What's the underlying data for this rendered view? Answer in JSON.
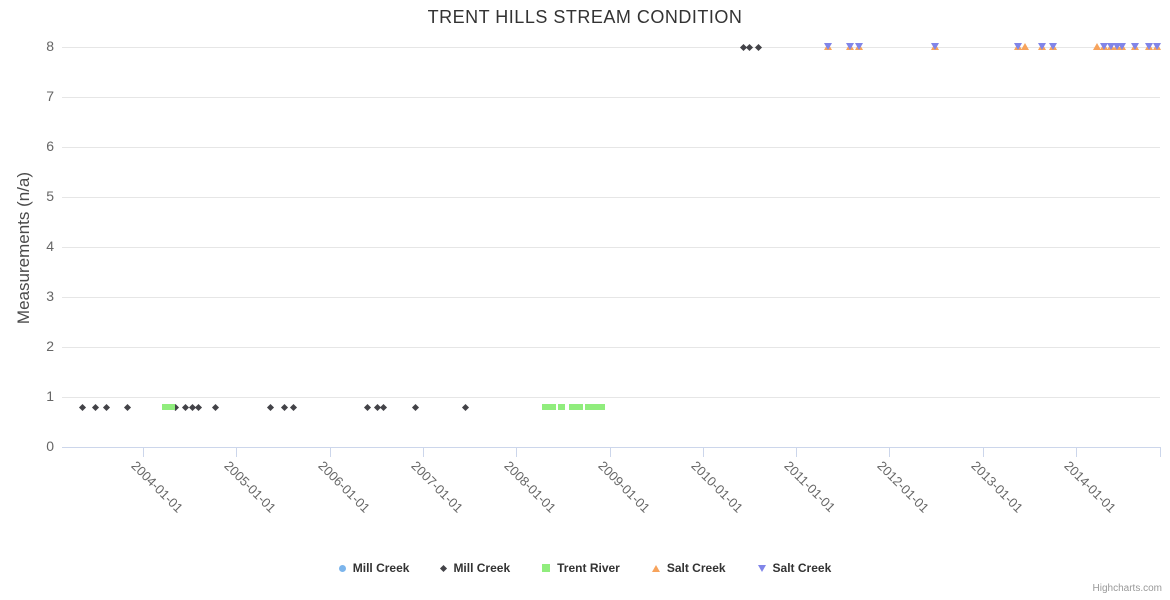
{
  "credits": "Highcharts.com",
  "chart_data": {
    "type": "scatter",
    "title": "TRENT HILLS STREAM CONDITION",
    "xlabel": "",
    "ylabel": "Measurements (n/a)",
    "ylim": [
      0,
      8
    ],
    "y_ticks": [
      0,
      1,
      2,
      3,
      4,
      5,
      6,
      7,
      8
    ],
    "xlim": [
      2003.13,
      2014.9
    ],
    "x_ticks": [
      {
        "value": 2004.0,
        "label": "2004-01-01"
      },
      {
        "value": 2005.0,
        "label": "2005-01-01"
      },
      {
        "value": 2006.0,
        "label": "2006-01-01"
      },
      {
        "value": 2007.0,
        "label": "2007-01-01"
      },
      {
        "value": 2008.0,
        "label": "2008-01-01"
      },
      {
        "value": 2009.0,
        "label": "2009-01-01"
      },
      {
        "value": 2010.0,
        "label": "2010-01-01"
      },
      {
        "value": 2011.0,
        "label": "2011-01-01"
      },
      {
        "value": 2012.0,
        "label": "2012-01-01"
      },
      {
        "value": 2013.0,
        "label": "2013-01-01"
      },
      {
        "value": 2014.0,
        "label": "2014-01-01"
      },
      {
        "value": 2014.9,
        "label": ""
      }
    ],
    "grid": "horizontal-only",
    "legend_position": "bottom-center",
    "colors": {
      "grid": "#e6e6e6",
      "axis_line": "#ccd6eb",
      "axis_label": "#666666",
      "title_text": "#333333"
    },
    "series": [
      {
        "name": "Mill Creek",
        "marker": "circle",
        "color": "#7cb5ec",
        "points": []
      },
      {
        "name": "Mill Creek",
        "marker": "diamond",
        "color": "#434348",
        "points": [
          [
            2003.35,
            0.8
          ],
          [
            2003.49,
            0.8
          ],
          [
            2003.61,
            0.8
          ],
          [
            2003.83,
            0.8
          ],
          [
            2004.35,
            0.8
          ],
          [
            2004.45,
            0.8
          ],
          [
            2004.53,
            0.8
          ],
          [
            2004.59,
            0.8
          ],
          [
            2004.78,
            0.8
          ],
          [
            2005.36,
            0.8
          ],
          [
            2005.52,
            0.8
          ],
          [
            2005.61,
            0.8
          ],
          [
            2006.41,
            0.8
          ],
          [
            2006.51,
            0.8
          ],
          [
            2006.58,
            0.8
          ],
          [
            2006.92,
            0.8
          ],
          [
            2007.45,
            0.8
          ],
          [
            2010.43,
            8
          ],
          [
            2010.5,
            8
          ],
          [
            2010.6,
            8
          ]
        ]
      },
      {
        "name": "Trent River",
        "marker": "square",
        "color": "#90ed7d",
        "points": [
          [
            2004.24,
            0.8
          ],
          [
            2004.3,
            0.8
          ],
          [
            2008.31,
            0.8
          ],
          [
            2008.39,
            0.8
          ],
          [
            2008.48,
            0.8
          ],
          [
            2008.6,
            0.8
          ],
          [
            2008.68,
            0.8
          ],
          [
            2008.77,
            0.8
          ],
          [
            2008.84,
            0.8
          ],
          [
            2008.91,
            0.8
          ]
        ]
      },
      {
        "name": "Salt Creek",
        "marker": "triangle-up",
        "color": "#f7a35c",
        "points": [
          [
            2011.34,
            8
          ],
          [
            2011.58,
            8
          ],
          [
            2011.67,
            8
          ],
          [
            2012.49,
            8
          ],
          [
            2013.38,
            8
          ],
          [
            2013.45,
            8
          ],
          [
            2013.64,
            8
          ],
          [
            2013.75,
            8
          ],
          [
            2014.22,
            8
          ],
          [
            2014.3,
            8
          ],
          [
            2014.38,
            8
          ],
          [
            2014.44,
            8
          ],
          [
            2014.49,
            8
          ],
          [
            2014.63,
            8
          ],
          [
            2014.78,
            8
          ],
          [
            2014.87,
            8
          ]
        ]
      },
      {
        "name": "Salt Creek",
        "marker": "triangle-down",
        "color": "#8085e9",
        "points": [
          [
            2011.34,
            8
          ],
          [
            2011.58,
            8
          ],
          [
            2011.67,
            8
          ],
          [
            2012.49,
            8
          ],
          [
            2013.38,
            8
          ],
          [
            2013.64,
            8
          ],
          [
            2013.75,
            8
          ],
          [
            2014.3,
            8
          ],
          [
            2014.38,
            8
          ],
          [
            2014.44,
            8
          ],
          [
            2014.49,
            8
          ],
          [
            2014.63,
            8
          ],
          [
            2014.78,
            8
          ],
          [
            2014.87,
            8
          ]
        ]
      }
    ]
  }
}
